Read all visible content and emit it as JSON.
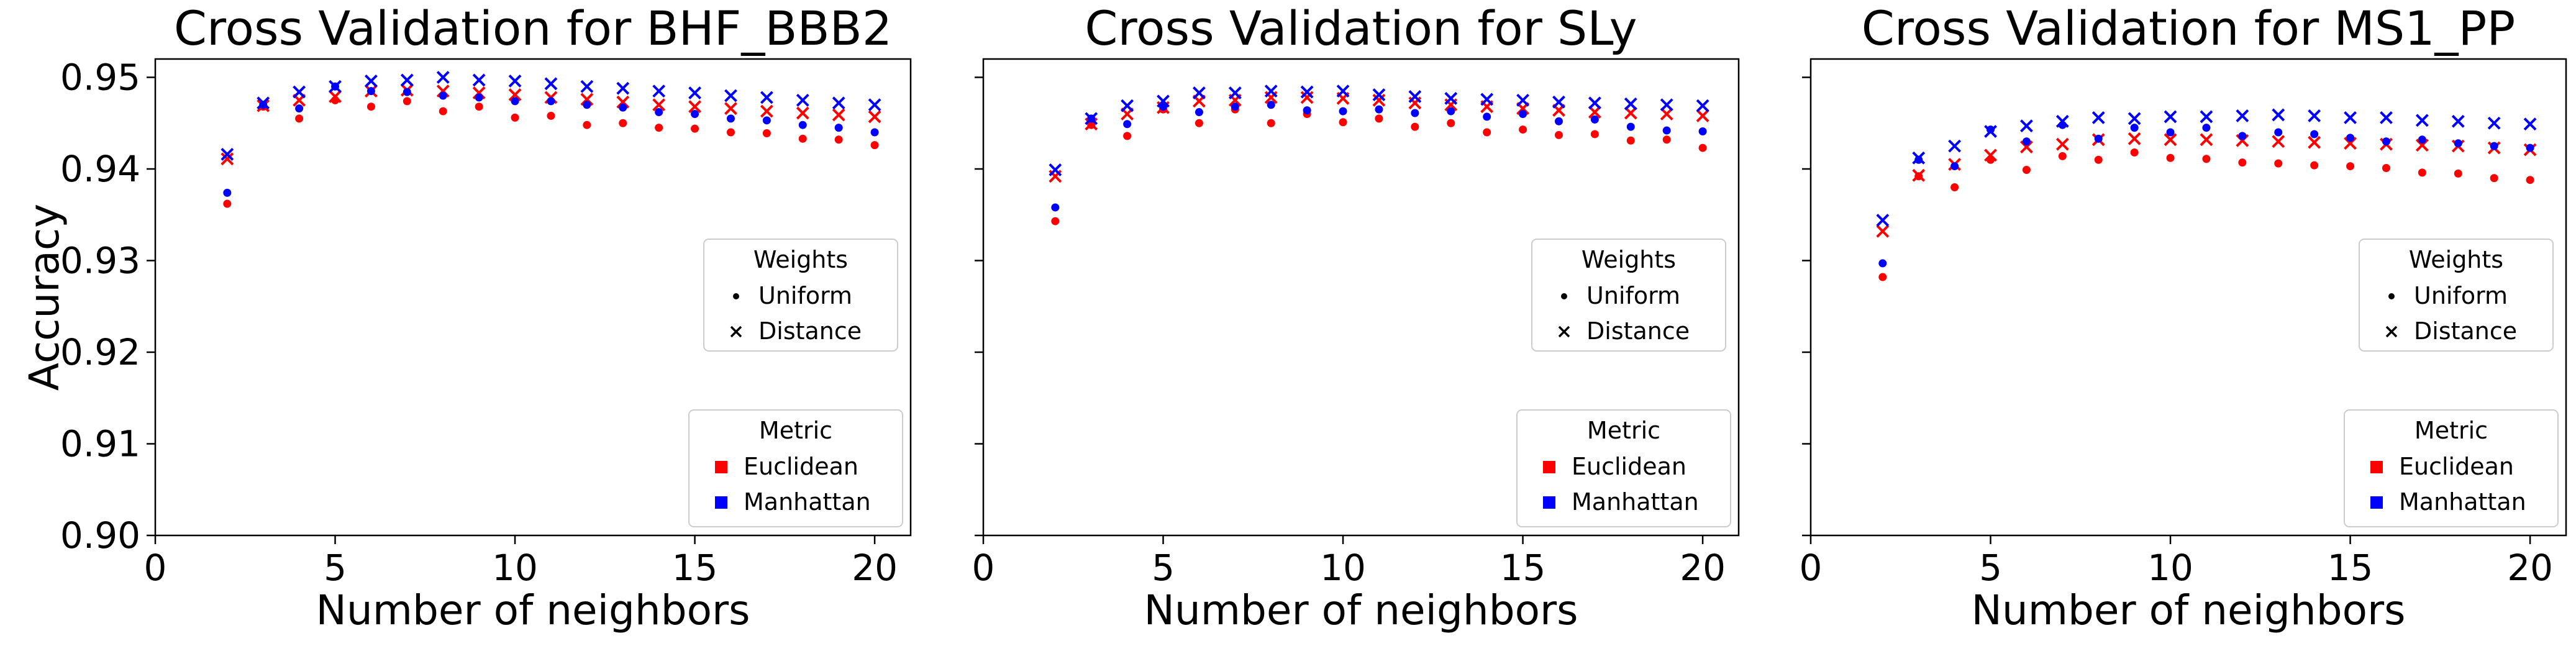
{
  "figure": {
    "ylabel": "Accuracy",
    "yticks": [
      0.9,
      0.91,
      0.92,
      0.93,
      0.94,
      0.95
    ],
    "xticks": [
      0,
      5,
      10,
      15,
      20
    ],
    "colors": {
      "euclidean": "#ff0000",
      "manhattan": "#0000ff"
    }
  },
  "chart_data": [
    {
      "type": "scatter",
      "title": "Cross Validation for BHF_BBB2",
      "xlabel": "Number of neighbors",
      "ylabel": "Accuracy",
      "xlim": [
        0,
        21
      ],
      "ylim": [
        0.9,
        0.952
      ],
      "x": [
        2,
        3,
        4,
        5,
        6,
        7,
        8,
        9,
        10,
        11,
        12,
        13,
        14,
        15,
        16,
        17,
        18,
        19,
        20
      ],
      "series": [
        {
          "metric": "Euclidean",
          "weights": "Uniform",
          "values": [
            0.9362,
            0.9468,
            0.9455,
            0.9475,
            0.9468,
            0.9474,
            0.9463,
            0.9468,
            0.9456,
            0.9458,
            0.9448,
            0.945,
            0.9445,
            0.9444,
            0.944,
            0.9439,
            0.9433,
            0.9432,
            0.9426
          ]
        },
        {
          "metric": "Euclidean",
          "weights": "Distance",
          "values": [
            0.9411,
            0.9469,
            0.9475,
            0.9479,
            0.9485,
            0.9486,
            0.9485,
            0.9483,
            0.9481,
            0.9478,
            0.9476,
            0.9473,
            0.947,
            0.9468,
            0.9466,
            0.9463,
            0.9461,
            0.9459,
            0.9457
          ]
        },
        {
          "metric": "Manhattan",
          "weights": "Uniform",
          "values": [
            0.9374,
            0.947,
            0.9466,
            0.949,
            0.9485,
            0.9484,
            0.948,
            0.9478,
            0.9474,
            0.9474,
            0.947,
            0.9467,
            0.9462,
            0.946,
            0.9455,
            0.9453,
            0.9448,
            0.9445,
            0.944
          ]
        },
        {
          "metric": "Manhattan",
          "weights": "Distance",
          "values": [
            0.9416,
            0.9472,
            0.9484,
            0.949,
            0.9496,
            0.9497,
            0.95,
            0.9497,
            0.9496,
            0.9493,
            0.949,
            0.9488,
            0.9485,
            0.9483,
            0.948,
            0.9478,
            0.9475,
            0.9472,
            0.947
          ]
        }
      ]
    },
    {
      "type": "scatter",
      "title": "Cross Validation for SLy",
      "xlabel": "Number of neighbors",
      "xlim": [
        0,
        21
      ],
      "ylim": [
        0.9,
        0.952
      ],
      "x": [
        2,
        3,
        4,
        5,
        6,
        7,
        8,
        9,
        10,
        11,
        12,
        13,
        14,
        15,
        16,
        17,
        18,
        19,
        20
      ],
      "series": [
        {
          "metric": "Euclidean",
          "weights": "Uniform",
          "values": [
            0.9343,
            0.9448,
            0.9436,
            0.9465,
            0.945,
            0.9465,
            0.945,
            0.946,
            0.9451,
            0.9455,
            0.9446,
            0.945,
            0.944,
            0.9443,
            0.9437,
            0.9438,
            0.9431,
            0.9432,
            0.9423
          ]
        },
        {
          "metric": "Euclidean",
          "weights": "Distance",
          "values": [
            0.9392,
            0.9449,
            0.946,
            0.9467,
            0.9474,
            0.9475,
            0.9478,
            0.9478,
            0.9477,
            0.9475,
            0.9472,
            0.947,
            0.9468,
            0.9466,
            0.9464,
            0.9462,
            0.9461,
            0.946,
            0.9458
          ]
        },
        {
          "metric": "Manhattan",
          "weights": "Uniform",
          "values": [
            0.9358,
            0.9455,
            0.9449,
            0.9468,
            0.9462,
            0.9468,
            0.947,
            0.9464,
            0.9463,
            0.9465,
            0.9461,
            0.9463,
            0.9457,
            0.946,
            0.9452,
            0.9454,
            0.9446,
            0.9442,
            0.9441
          ]
        },
        {
          "metric": "Manhattan",
          "weights": "Distance",
          "values": [
            0.9399,
            0.9455,
            0.9469,
            0.9474,
            0.9483,
            0.9483,
            0.9485,
            0.9484,
            0.9485,
            0.9481,
            0.9479,
            0.9477,
            0.9476,
            0.9475,
            0.9473,
            0.9472,
            0.9471,
            0.947,
            0.9469
          ]
        }
      ]
    },
    {
      "type": "scatter",
      "title": "Cross Validation for MS1_PP",
      "xlabel": "Number of neighbors",
      "xlim": [
        0,
        21
      ],
      "ylim": [
        0.9,
        0.952
      ],
      "x": [
        2,
        3,
        4,
        5,
        6,
        7,
        8,
        9,
        10,
        11,
        12,
        13,
        14,
        15,
        16,
        17,
        18,
        19,
        20
      ],
      "series": [
        {
          "metric": "Euclidean",
          "weights": "Uniform",
          "values": [
            0.9282,
            0.9392,
            0.938,
            0.941,
            0.9399,
            0.9414,
            0.941,
            0.9418,
            0.9412,
            0.9411,
            0.9407,
            0.9406,
            0.9404,
            0.9403,
            0.9401,
            0.9396,
            0.9395,
            0.939,
            0.9388
          ]
        },
        {
          "metric": "Euclidean",
          "weights": "Distance",
          "values": [
            0.9332,
            0.9393,
            0.9405,
            0.9415,
            0.9424,
            0.9427,
            0.9432,
            0.9433,
            0.9432,
            0.9432,
            0.9431,
            0.943,
            0.9429,
            0.9428,
            0.9427,
            0.9426,
            0.9425,
            0.9423,
            0.9421
          ]
        },
        {
          "metric": "Manhattan",
          "weights": "Uniform",
          "values": [
            0.9297,
            0.941,
            0.9403,
            0.9443,
            0.943,
            0.9448,
            0.9433,
            0.9445,
            0.944,
            0.9445,
            0.9436,
            0.944,
            0.9438,
            0.9434,
            0.943,
            0.9432,
            0.9428,
            0.9425,
            0.9423
          ]
        },
        {
          "metric": "Manhattan",
          "weights": "Distance",
          "values": [
            0.9344,
            0.9412,
            0.9425,
            0.9441,
            0.9447,
            0.9452,
            0.9456,
            0.9455,
            0.9457,
            0.9457,
            0.9458,
            0.9459,
            0.9458,
            0.9456,
            0.9456,
            0.9453,
            0.9452,
            0.945,
            0.9449
          ]
        }
      ]
    }
  ],
  "legends": {
    "weights": {
      "title": "Weights",
      "items": [
        "Uniform",
        "Distance"
      ]
    },
    "metric": {
      "title": "Metric",
      "items": [
        "Euclidean",
        "Manhattan"
      ]
    }
  }
}
